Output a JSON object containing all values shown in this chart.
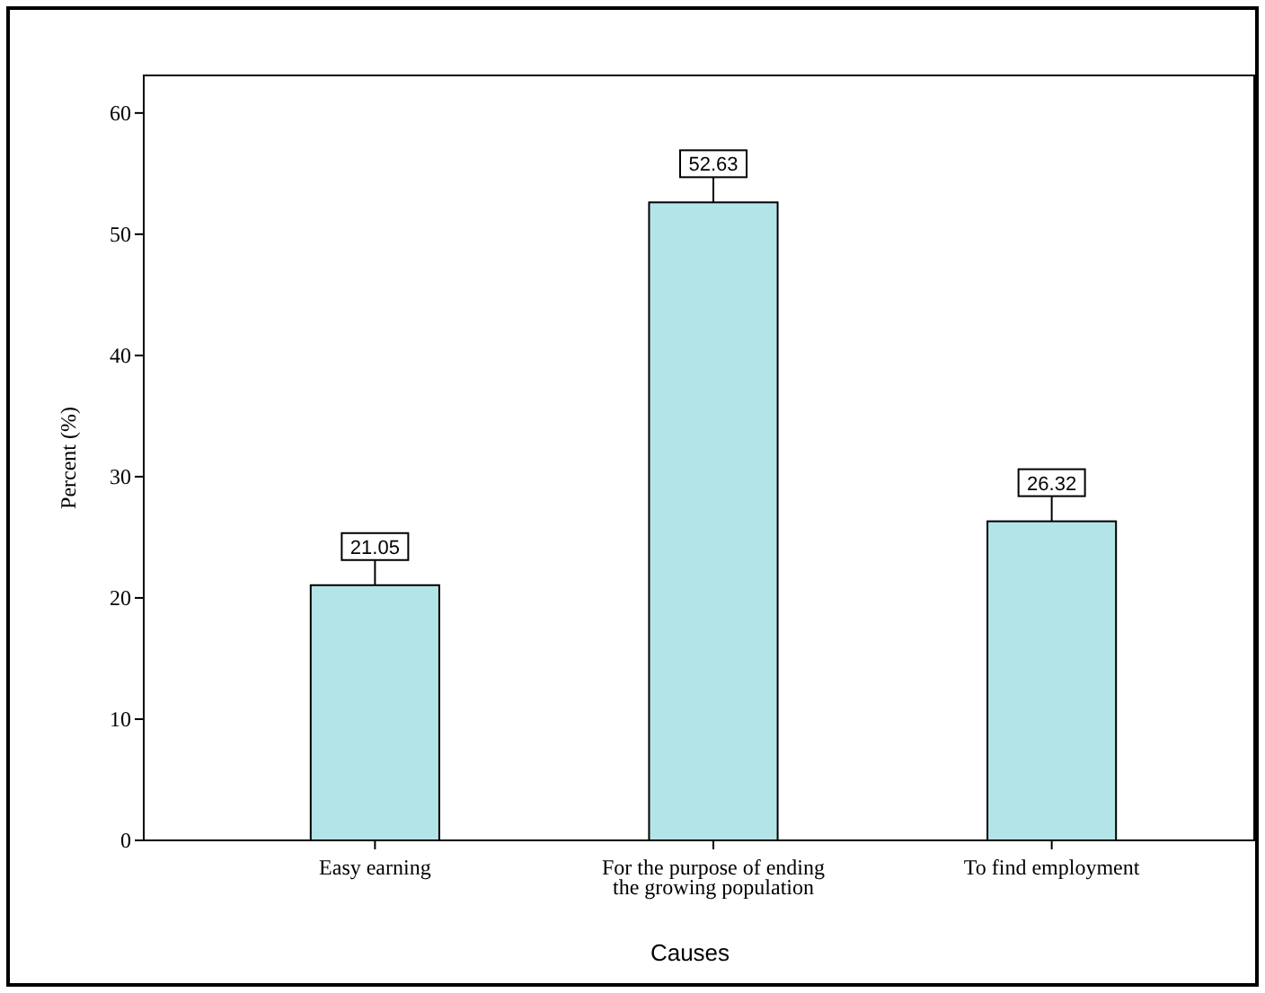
{
  "chart_data": {
    "type": "bar",
    "xlabel": "Causes",
    "ylabel": "Percent (%)",
    "categories": [
      "Easy earning",
      "For the purpose of ending the growing population",
      "To find employment"
    ],
    "values": [
      21.05,
      52.63,
      26.32
    ],
    "color": "#b3e5e8",
    "data_labels": true,
    "ylim": [
      0,
      63.1
    ],
    "yticks": [
      0,
      10,
      20,
      30,
      40,
      50,
      60
    ]
  }
}
